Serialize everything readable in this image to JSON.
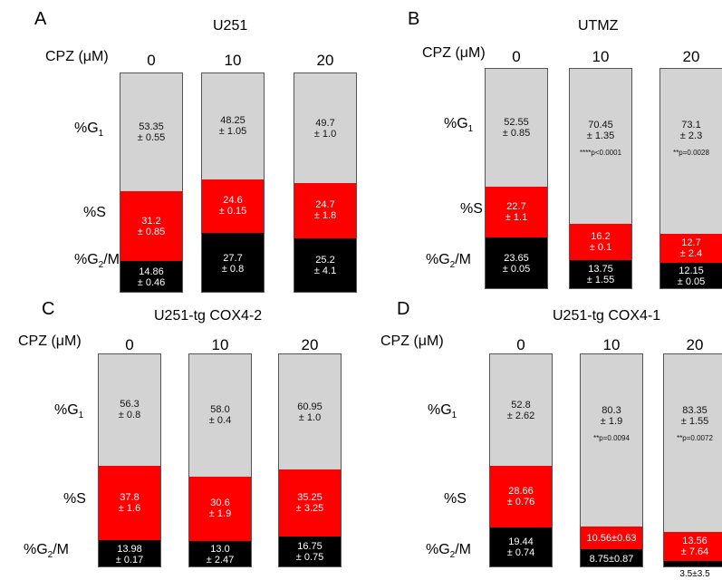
{
  "colors": {
    "g1": "#d3d3d3",
    "s": "#ff0000",
    "g2m": "#000000"
  },
  "chart_data": [
    {
      "type": "bar",
      "panel": "A",
      "title": "U251",
      "xlabel": "CPZ (μM)",
      "categories": [
        "0",
        "10",
        "20"
      ],
      "series": [
        {
          "name": "%G₁",
          "values": [
            53.35,
            48.25,
            49.7
          ],
          "labels": [
            "53.35\n± 0.55",
            "48.25\n± 1.05",
            "49.7\n± 1.0"
          ],
          "pvalues": [
            "",
            "",
            ""
          ]
        },
        {
          "name": "%S",
          "values": [
            31.2,
            24.6,
            24.7
          ],
          "labels": [
            "31.2\n± 0.85",
            "24.6\n± 0.15",
            "24.7\n± 1.8"
          ]
        },
        {
          "name": "%G₂/M",
          "values": [
            14.86,
            27.7,
            25.2
          ],
          "labels": [
            "14.86\n± 0.46",
            "27.7\n± 0.8",
            "25.2\n± 4.1"
          ]
        }
      ]
    },
    {
      "type": "bar",
      "panel": "B",
      "title": "UTMZ",
      "xlabel": "CPZ (μM)",
      "categories": [
        "0",
        "10",
        "20"
      ],
      "series": [
        {
          "name": "%G₁",
          "values": [
            52.55,
            70.45,
            73.1
          ],
          "labels": [
            "52.55\n± 0.85",
            "70.45\n± 1.35",
            "73.1\n± 2.3"
          ],
          "pvalues": [
            "",
            "****p<0.0001",
            "**p=0.0028"
          ]
        },
        {
          "name": "%S",
          "values": [
            22.7,
            16.2,
            12.7
          ],
          "labels": [
            "22.7\n± 1.1",
            "16.2\n± 0.1",
            "12.7\n± 2.4"
          ]
        },
        {
          "name": "%G₂/M",
          "values": [
            23.65,
            13.75,
            12.15
          ],
          "labels": [
            "23.65\n± 0.05",
            "13.75\n± 1.55",
            "12.15\n± 0.05"
          ]
        }
      ]
    },
    {
      "type": "bar",
      "panel": "C",
      "title": "U251-tg COX4-2",
      "xlabel": "CPZ (μM)",
      "categories": [
        "0",
        "10",
        "20"
      ],
      "series": [
        {
          "name": "%G₁",
          "values": [
            56.3,
            58.0,
            60.95
          ],
          "labels": [
            "56.3\n± 0.8",
            "58.0\n± 0.4",
            "60.95\n± 1.0"
          ],
          "pvalues": [
            "",
            "",
            ""
          ]
        },
        {
          "name": "%S",
          "values": [
            37.8,
            30.6,
            35.25
          ],
          "labels": [
            "37.8\n± 1.6",
            "30.6\n± 1.9",
            "35.25\n± 3.25"
          ]
        },
        {
          "name": "%G₂/M",
          "values": [
            13.98,
            13.0,
            16.75
          ],
          "labels": [
            "13.98\n± 0.17",
            "13.0\n± 2.47",
            "16.75\n± 0.75"
          ]
        }
      ]
    },
    {
      "type": "bar",
      "panel": "D",
      "title": "U251-tg COX4-1",
      "xlabel": "CPZ (μM)",
      "categories": [
        "0",
        "10",
        "20"
      ],
      "series": [
        {
          "name": "%G₁",
          "values": [
            52.8,
            80.3,
            83.35
          ],
          "labels": [
            "52.8\n± 2.62",
            "80.3\n± 1.9",
            "83.35\n± 1.55"
          ],
          "pvalues": [
            "",
            "**p=0.0094",
            "**p=0.0072"
          ]
        },
        {
          "name": "%S",
          "values": [
            28.66,
            10.56,
            13.56
          ],
          "labels": [
            "28.66\n± 0.76",
            "10.56±0.63",
            "13.56\n± 7.64"
          ]
        },
        {
          "name": "%G₂/M",
          "values": [
            19.44,
            8.75,
            3.5
          ],
          "labels": [
            "19.44\n± 0.74",
            "8.75±0.87",
            ""
          ],
          "below_labels": [
            "",
            "",
            "3.5±3.5"
          ]
        }
      ]
    }
  ]
}
